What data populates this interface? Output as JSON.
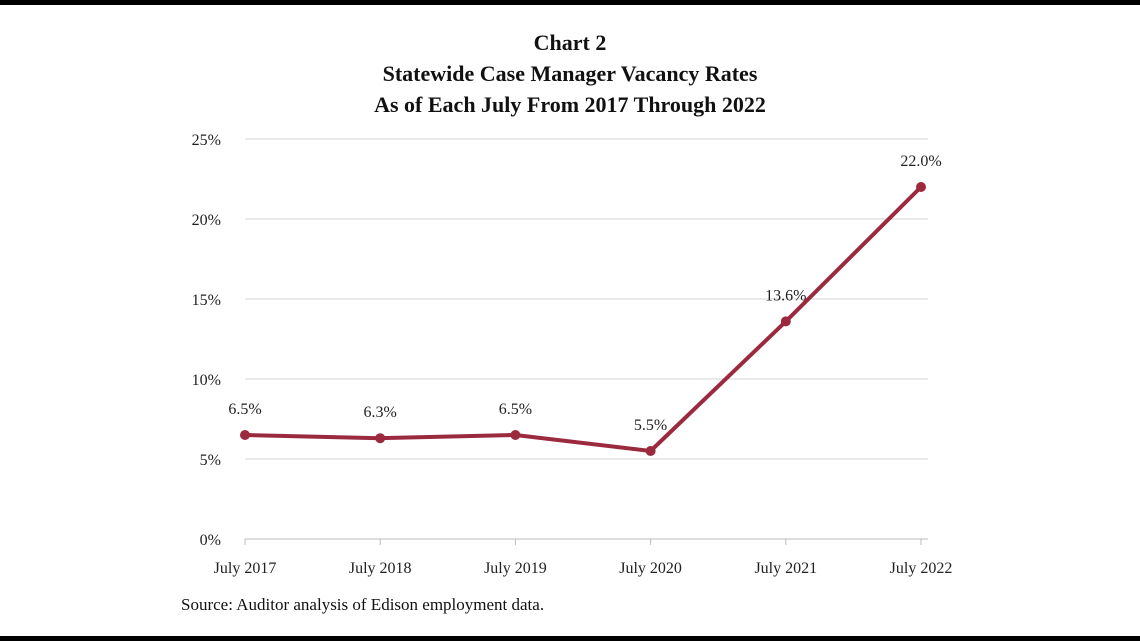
{
  "chart_data": {
    "type": "line",
    "title": "Chart 2",
    "subtitle": [
      "Statewide Case Manager Vacancy Rates",
      "As of Each July From 2017 Through 2022"
    ],
    "categories": [
      "July 2017",
      "July 2018",
      "July 2019",
      "July 2020",
      "July 2021",
      "July 2022"
    ],
    "series": [
      {
        "values": [
          6.5,
          6.3,
          6.5,
          5.5,
          13.6,
          22.0
        ],
        "color": "#9b2a3f"
      }
    ],
    "data_labels": [
      "6.5%",
      "6.3%",
      "6.5%",
      "5.5%",
      "13.6%",
      "22.0%"
    ],
    "yticks": [
      0,
      5,
      10,
      15,
      20,
      25
    ],
    "ytick_labels": [
      "0%",
      "5%",
      "10%",
      "15%",
      "20%",
      "25%"
    ],
    "ylim": [
      0,
      25
    ],
    "xlabel": "",
    "ylabel": "",
    "grid": true,
    "legend": "none",
    "source": "Source: Auditor analysis of Edison employment data."
  },
  "colors": {
    "line": "#9b2a3f",
    "grid": "#d4d4d4",
    "axis": "#bdbdbd"
  }
}
